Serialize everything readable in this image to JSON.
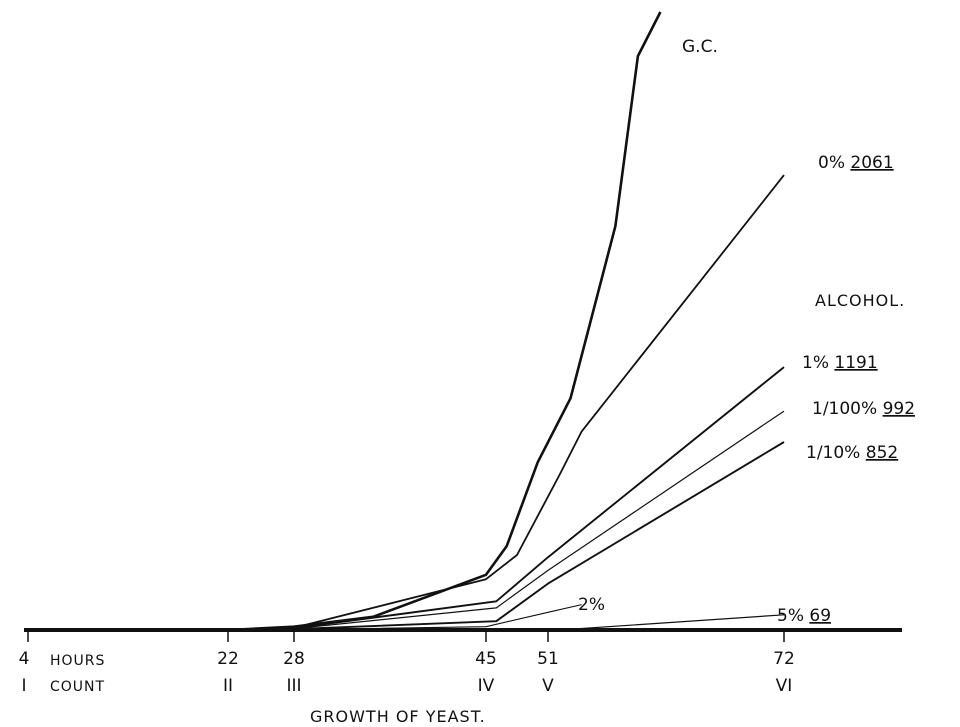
{
  "chart_data": {
    "type": "line",
    "title": "",
    "xlabel": "GROWTH OF YEAST.",
    "ylabel": "",
    "x_hours_label": "HOURS",
    "x_count_label": "COUNT",
    "x_ticks_hours": [
      "4",
      "22",
      "28",
      "45",
      "51",
      "72"
    ],
    "x_ticks_count": [
      "I",
      "II",
      "III",
      "IV",
      "V",
      "VI"
    ],
    "x": [
      4,
      22,
      28,
      45,
      51,
      72
    ],
    "xlim": [
      4,
      82
    ],
    "ylim": [
      0,
      2800
    ],
    "grid": false,
    "series_group_label": "ALCOHOL.",
    "series": [
      {
        "name": "G.C.",
        "label": "G.C.",
        "points": [
          [
            4,
            0
          ],
          [
            22,
            0
          ],
          [
            28,
            15
          ],
          [
            35,
            60
          ],
          [
            45,
            250
          ],
          [
            47,
            380
          ],
          [
            50,
            760
          ],
          [
            53,
            1050
          ],
          [
            57,
            1830
          ],
          [
            59,
            2600
          ],
          [
            61,
            2900
          ]
        ]
      },
      {
        "name": "0%",
        "label": "0% 2061",
        "value": "2061",
        "points": [
          [
            22,
            0
          ],
          [
            28,
            10
          ],
          [
            45,
            230
          ],
          [
            48,
            340
          ],
          [
            52,
            700
          ],
          [
            54,
            900
          ],
          [
            72,
            2061
          ]
        ]
      },
      {
        "name": "1%",
        "label": "1% 1191",
        "value": "1191",
        "points": [
          [
            22,
            0
          ],
          [
            28,
            8
          ],
          [
            46,
            130
          ],
          [
            51,
            330
          ],
          [
            72,
            1191
          ]
        ]
      },
      {
        "name": "1/100%",
        "label": "1/100% 992",
        "value": "992",
        "points": [
          [
            22,
            0
          ],
          [
            28,
            6
          ],
          [
            46,
            100
          ],
          [
            51,
            270
          ],
          [
            72,
            992
          ]
        ]
      },
      {
        "name": "1/10%",
        "label": "1/10% 852",
        "value": "852",
        "points": [
          [
            22,
            0
          ],
          [
            28,
            4
          ],
          [
            46,
            40
          ],
          [
            51,
            210
          ],
          [
            72,
            852
          ]
        ]
      },
      {
        "name": "2%",
        "label": "2%",
        "value": "",
        "points": [
          [
            22,
            0
          ],
          [
            28,
            2
          ],
          [
            45,
            15
          ],
          [
            51,
            80
          ],
          [
            54,
            115
          ]
        ]
      },
      {
        "name": "5%",
        "label": "5% 69",
        "value": "69",
        "points": [
          [
            4,
            0
          ],
          [
            52,
            0
          ],
          [
            72,
            69
          ]
        ]
      }
    ]
  }
}
